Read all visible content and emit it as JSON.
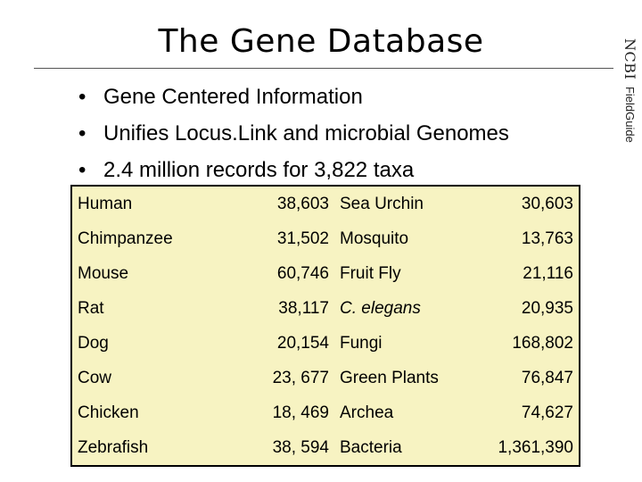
{
  "slide": {
    "title": "The Gene Database",
    "brand": {
      "ncbi": "NCBI",
      "fieldguide": "FieldGuide"
    },
    "bullets": [
      "Gene Centered Information",
      "Unifies Locus.Link and microbial Genomes",
      "2.4 million records for 3,822 taxa"
    ],
    "bullet_symbol": "•"
  },
  "table": {
    "rows": [
      {
        "name1": "Human",
        "num1": "38,603",
        "name2": "Sea Urchin",
        "num2": "30,603",
        "italic2": false
      },
      {
        "name1": "Chimpanzee",
        "num1": "31,502",
        "name2": "Mosquito",
        "num2": "13,763",
        "italic2": false
      },
      {
        "name1": "Mouse",
        "num1": "60,746",
        "name2": "Fruit Fly",
        "num2": "21,116",
        "italic2": false
      },
      {
        "name1": "Rat",
        "num1": "38,117",
        "name2": "C. elegans",
        "num2": "20,935",
        "italic2": true
      },
      {
        "name1": "Dog",
        "num1": "20,154",
        "name2": "Fungi",
        "num2": "168,802",
        "italic2": false
      },
      {
        "name1": "Cow",
        "num1": "23, 677",
        "name2": "Green Plants",
        "num2": "76,847",
        "italic2": false
      },
      {
        "name1": "Chicken",
        "num1": "18, 469",
        "name2": "Archea",
        "num2": "74,627",
        "italic2": false
      },
      {
        "name1": "Zebrafish",
        "num1": "38, 594",
        "name2": "Bacteria",
        "num2": "1,361,390",
        "italic2": false
      }
    ],
    "background": "#f7f3c2"
  }
}
